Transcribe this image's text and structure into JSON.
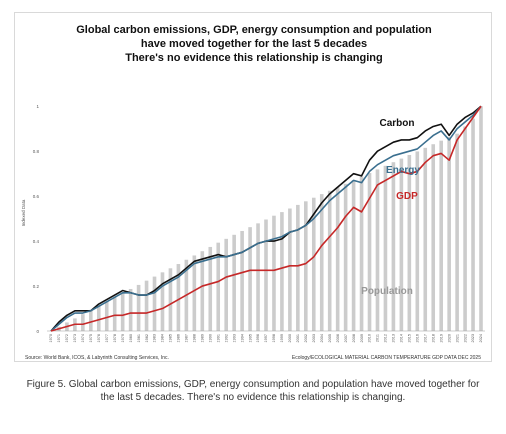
{
  "figure": {
    "title_lines": [
      "Global carbon emissions, GDP, energy consumption and population",
      "have moved together for the last 5 decades",
      "There's no evidence this relationship is changing"
    ],
    "source_left": "Source: World Bank,  ICOS, & Labyrinth Consulting Services, Inc.",
    "source_right": "Ecology/ECOLOGICAL MATERIAL CARBON TEMPERATURE GDP DATA DEC 2025",
    "caption": "Figure 5. Global carbon emissions, GDP, energy consumption and population have moved together for the last 5 decades. There's no evidence this relationship is changing."
  },
  "chart_data": {
    "type": "line",
    "ylabel": "Indexed Data",
    "ylim": [
      0,
      1.05
    ],
    "yticks": [
      {
        "value": 0,
        "label": "0"
      },
      {
        "value": 0.2,
        "label": "0.2"
      },
      {
        "value": 0.4,
        "label": "0.4"
      },
      {
        "value": 0.6,
        "label": "0.6"
      },
      {
        "value": 0.8,
        "label": "0.8"
      },
      {
        "value": 1,
        "label": "1"
      }
    ],
    "x": [
      "1970",
      "1971",
      "1972",
      "1973",
      "1974",
      "1975",
      "1976",
      "1977",
      "1978",
      "1979",
      "1980",
      "1981",
      "1982",
      "1983",
      "1984",
      "1985",
      "1986",
      "1987",
      "1988",
      "1989",
      "1990",
      "1991",
      "1992",
      "1993",
      "1994",
      "1995",
      "1996",
      "1997",
      "1998",
      "1999",
      "2000",
      "2001",
      "2002",
      "2003",
      "2004",
      "2005",
      "2006",
      "2007",
      "2008",
      "2009",
      "2010",
      "2011",
      "2012",
      "2013",
      "2014",
      "2015",
      "2016",
      "2017",
      "2018",
      "2019",
      "2020",
      "2021",
      "2022",
      "2023",
      "2024"
    ],
    "grid": false,
    "series": [
      {
        "name": "Population",
        "kind": "bar",
        "color": "#cccccc",
        "values": [
          0.0,
          0.019,
          0.038,
          0.056,
          0.075,
          0.094,
          0.112,
          0.131,
          0.149,
          0.168,
          0.187,
          0.205,
          0.224,
          0.242,
          0.261,
          0.279,
          0.298,
          0.317,
          0.336,
          0.355,
          0.374,
          0.393,
          0.41,
          0.428,
          0.445,
          0.462,
          0.479,
          0.496,
          0.513,
          0.529,
          0.545,
          0.561,
          0.577,
          0.593,
          0.609,
          0.624,
          0.64,
          0.655,
          0.671,
          0.687,
          0.703,
          0.719,
          0.735,
          0.751,
          0.767,
          0.783,
          0.799,
          0.815,
          0.831,
          0.847,
          0.863,
          0.878,
          0.91,
          0.945,
          1.0
        ]
      },
      {
        "name": "Carbon",
        "kind": "line",
        "color": "#111111",
        "values": [
          0.0,
          0.04,
          0.07,
          0.09,
          0.09,
          0.09,
          0.12,
          0.14,
          0.16,
          0.18,
          0.17,
          0.16,
          0.16,
          0.18,
          0.21,
          0.23,
          0.25,
          0.28,
          0.31,
          0.32,
          0.33,
          0.34,
          0.33,
          0.34,
          0.35,
          0.37,
          0.39,
          0.4,
          0.4,
          0.41,
          0.44,
          0.45,
          0.47,
          0.52,
          0.57,
          0.61,
          0.64,
          0.67,
          0.7,
          0.69,
          0.76,
          0.8,
          0.82,
          0.84,
          0.85,
          0.85,
          0.86,
          0.89,
          0.91,
          0.92,
          0.87,
          0.92,
          0.95,
          0.97,
          1.0
        ]
      },
      {
        "name": "Energy",
        "kind": "line",
        "color": "#3a6f8f",
        "values": [
          0.0,
          0.03,
          0.06,
          0.08,
          0.08,
          0.09,
          0.11,
          0.13,
          0.15,
          0.17,
          0.17,
          0.16,
          0.16,
          0.17,
          0.2,
          0.22,
          0.24,
          0.27,
          0.3,
          0.31,
          0.32,
          0.33,
          0.33,
          0.34,
          0.35,
          0.37,
          0.39,
          0.4,
          0.41,
          0.42,
          0.44,
          0.45,
          0.47,
          0.5,
          0.54,
          0.58,
          0.61,
          0.64,
          0.67,
          0.66,
          0.71,
          0.74,
          0.76,
          0.78,
          0.79,
          0.8,
          0.81,
          0.84,
          0.87,
          0.89,
          0.85,
          0.9,
          0.93,
          0.96,
          1.0
        ]
      },
      {
        "name": "GDP",
        "kind": "line",
        "color": "#c62828",
        "values": [
          0.0,
          0.01,
          0.02,
          0.03,
          0.03,
          0.04,
          0.05,
          0.06,
          0.07,
          0.07,
          0.08,
          0.08,
          0.08,
          0.09,
          0.1,
          0.12,
          0.14,
          0.16,
          0.18,
          0.2,
          0.21,
          0.22,
          0.24,
          0.25,
          0.26,
          0.27,
          0.27,
          0.27,
          0.27,
          0.28,
          0.29,
          0.29,
          0.3,
          0.33,
          0.38,
          0.42,
          0.46,
          0.51,
          0.55,
          0.53,
          0.59,
          0.65,
          0.67,
          0.69,
          0.71,
          0.7,
          0.71,
          0.75,
          0.78,
          0.79,
          0.76,
          0.85,
          0.9,
          0.95,
          1.0
        ]
      }
    ],
    "labels": [
      {
        "text": "Carbon",
        "series": "Carbon"
      },
      {
        "text": "Energy",
        "series": "Energy"
      },
      {
        "text": "GDP",
        "series": "GDP"
      },
      {
        "text": "Population",
        "series": "Population"
      }
    ]
  }
}
